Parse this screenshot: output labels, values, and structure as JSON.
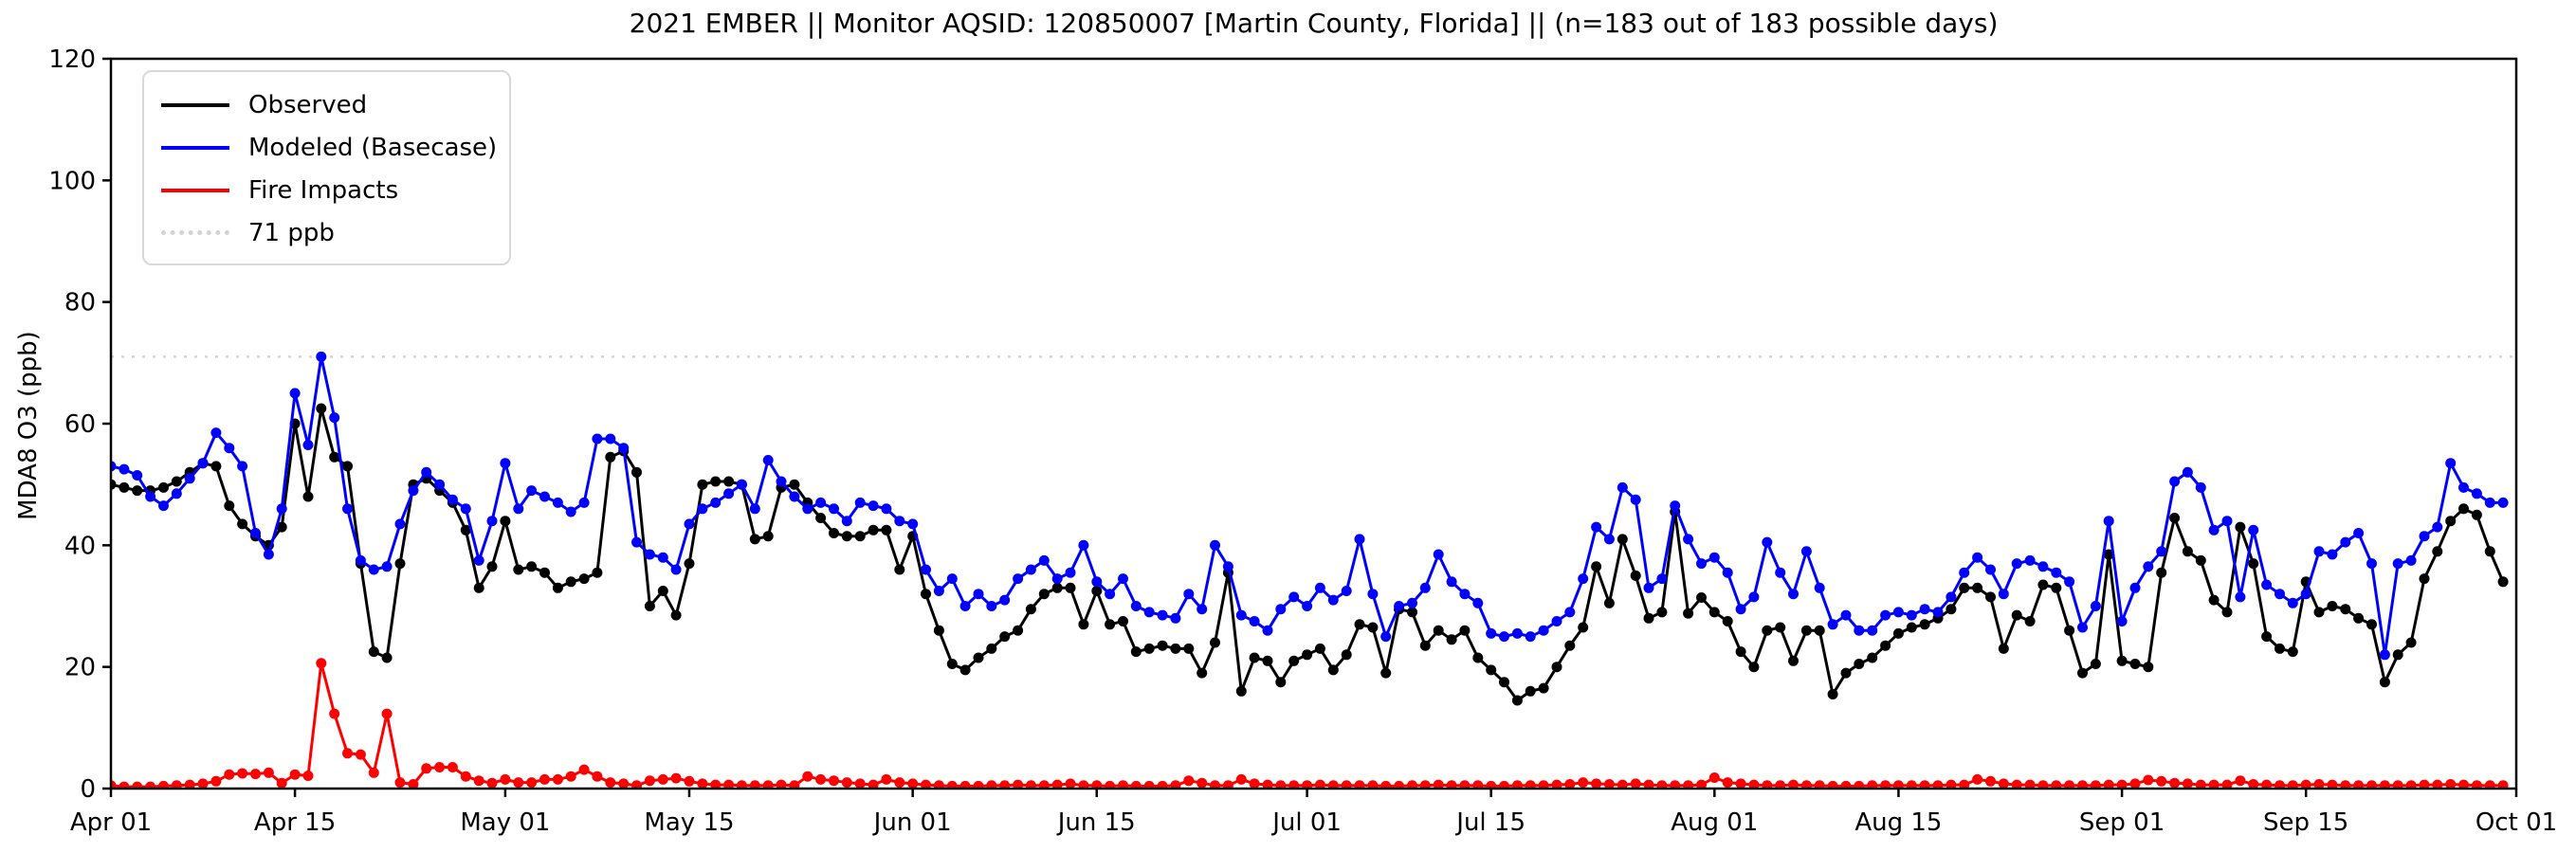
{
  "chart_data": {
    "type": "line",
    "title": "2021 EMBER || Monitor AQSID: 120850007 [Martin County, Florida] || (n=183 out of 183 possible days)",
    "ylabel": "MDA8 O3 (ppb)",
    "xlabel": "",
    "ylim": [
      0,
      120
    ],
    "y_ticks": [
      0,
      20,
      40,
      60,
      80,
      100,
      120
    ],
    "x_start_date": "2021-04-01",
    "x_end_date": "2021-10-01",
    "n_days": 183,
    "x_range_days": 183,
    "x_tick_days": [
      0,
      14,
      30,
      44,
      61,
      75,
      91,
      105,
      122,
      136,
      153,
      167,
      183
    ],
    "x_tick_labels": [
      "Apr 01",
      "Apr 15",
      "May 01",
      "May 15",
      "Jun 01",
      "Jun 15",
      "Jul 01",
      "Jul 15",
      "Aug 01",
      "Aug 15",
      "Sep 01",
      "Sep 15",
      "Oct 01"
    ],
    "grid": false,
    "legend_position": "upper left",
    "threshold": {
      "value": 71,
      "label": "71 ppb",
      "color": "#d3d3d3",
      "style": "dotted"
    },
    "series": [
      {
        "name": "Observed",
        "color": "#000000",
        "marker": "circle",
        "values": [
          50,
          49.5,
          49,
          49,
          49.5,
          50.5,
          52,
          53.5,
          53,
          46.5,
          43.5,
          41.5,
          40,
          43,
          60,
          48,
          62.5,
          54.5,
          53,
          37,
          22.5,
          21.5,
          37,
          50,
          51,
          49,
          47,
          42.5,
          33,
          36.5,
          44,
          36,
          36.5,
          35.5,
          33,
          34,
          34.5,
          35.5,
          54.5,
          55.5,
          52,
          30,
          32.5,
          28.5,
          37,
          50,
          50.5,
          50.5,
          50,
          41,
          41.5,
          49.5,
          50,
          47,
          44.5,
          42,
          41.5,
          41.5,
          42.5,
          42.5,
          36,
          41.5,
          32,
          26,
          20.5,
          19.5,
          21.5,
          23,
          25,
          26,
          29.5,
          32,
          33,
          33,
          27,
          32.5,
          27,
          27.5,
          22.5,
          23,
          23.5,
          23,
          23,
          19,
          24,
          35.5,
          16,
          21.5,
          21,
          17.5,
          21,
          22,
          23,
          19.5,
          22,
          27,
          26.5,
          19,
          29.5,
          29,
          23.5,
          26,
          24.5,
          26,
          21.5,
          19.5,
          17.5,
          14.5,
          16,
          16.5,
          20,
          23.5,
          26.5,
          36.5,
          30.5,
          41,
          35,
          28,
          29,
          45.5,
          28.8,
          31.4,
          29,
          27.5,
          22.5,
          20,
          26,
          26.5,
          21,
          26,
          26,
          15.5,
          19,
          20.5,
          21.5,
          23.5,
          25.5,
          26.5,
          27,
          28,
          29.5,
          33,
          33,
          31.5,
          23,
          28.5,
          27.5,
          33.5,
          33,
          26,
          19,
          20.5,
          38.5,
          21,
          20.5,
          20,
          35.5,
          44.5,
          39,
          37.5,
          31,
          29,
          43,
          37,
          25,
          23,
          22.5,
          34,
          29,
          30,
          29.5,
          28,
          27,
          17.5,
          22,
          24,
          34.5,
          39,
          44,
          46,
          45,
          39,
          34
        ]
      },
      {
        "name": "Modeled (Basecase)",
        "color": "#0000ff",
        "marker": "circle",
        "values": [
          53,
          52.5,
          51.5,
          48,
          46.5,
          48.5,
          51,
          53.5,
          58.5,
          56,
          53,
          42,
          38.5,
          46,
          65,
          56.5,
          71,
          61,
          46,
          37.5,
          36,
          36.5,
          43.5,
          49,
          52,
          50,
          47.5,
          46,
          37.5,
          44,
          53.5,
          46,
          49,
          48,
          47,
          45.5,
          47,
          57.5,
          57.5,
          56,
          40.5,
          38.5,
          38,
          36,
          43.5,
          46,
          47,
          48.5,
          50,
          46,
          54,
          50.5,
          48,
          46,
          47,
          46,
          44,
          47,
          46.5,
          46,
          44,
          43.5,
          36,
          32.5,
          34.5,
          30,
          32,
          30,
          31,
          34.5,
          36,
          37.5,
          34.5,
          35.5,
          40,
          34,
          32,
          34.5,
          30,
          29,
          28.5,
          28,
          32,
          29.5,
          40,
          36.5,
          28.5,
          27.5,
          26,
          29.5,
          31.5,
          30,
          33,
          31,
          32.5,
          41,
          32,
          25,
          30,
          30.5,
          33,
          38.5,
          34,
          32,
          30.5,
          25.5,
          25,
          25.5,
          25,
          26,
          27.5,
          29,
          34.5,
          43,
          41,
          49.5,
          47.5,
          33,
          34.5,
          46.5,
          41,
          37,
          38,
          35.5,
          29.5,
          31.5,
          40.5,
          35.5,
          32,
          39,
          33,
          27,
          28.5,
          26,
          26,
          28.5,
          29,
          28.5,
          29.5,
          29,
          31.5,
          35.5,
          38,
          36,
          32,
          37,
          37.5,
          36.5,
          35.5,
          34,
          26.5,
          30,
          44,
          27.5,
          33,
          36.5,
          39,
          50.5,
          52,
          49.5,
          42.5,
          44,
          31.5,
          42.5,
          33.5,
          32,
          30.5,
          32,
          39,
          38.5,
          40.5,
          42,
          37,
          22,
          37,
          37.5,
          41.5,
          43,
          53.5,
          49.5,
          48.5,
          47,
          47
        ]
      },
      {
        "name": "Fire Impacts",
        "color": "#ff0000",
        "marker": "circle",
        "values": [
          0.5,
          0.3,
          0.3,
          0.3,
          0.4,
          0.5,
          0.6,
          0.8,
          1.2,
          2.3,
          2.5,
          2.4,
          2.6,
          0.9,
          2.3,
          2.1,
          20.6,
          12.3,
          5.8,
          5.6,
          2.6,
          12.3,
          1.0,
          0.7,
          3.3,
          3.5,
          3.5,
          2.0,
          1.3,
          0.9,
          1.5,
          1.0,
          1.0,
          1.5,
          1.5,
          2.0,
          3.1,
          2.0,
          1.0,
          0.8,
          0.5,
          1.3,
          1.5,
          1.7,
          1.2,
          0.8,
          0.6,
          0.6,
          0.5,
          0.5,
          0.5,
          0.6,
          0.5,
          2.0,
          1.5,
          1.3,
          1.0,
          0.8,
          0.6,
          1.5,
          1.0,
          0.8,
          0.6,
          0.5,
          0.4,
          0.4,
          0.4,
          0.5,
          0.5,
          0.6,
          0.5,
          0.5,
          0.6,
          0.8,
          0.5,
          0.5,
          0.4,
          0.5,
          0.4,
          0.4,
          0.4,
          0.5,
          1.3,
          0.9,
          0.5,
          0.5,
          1.5,
          0.8,
          0.6,
          0.5,
          0.5,
          0.5,
          0.6,
          0.5,
          0.5,
          0.5,
          0.5,
          0.4,
          0.4,
          0.5,
          0.5,
          0.6,
          0.5,
          0.5,
          0.5,
          0.4,
          0.4,
          0.5,
          0.5,
          0.5,
          0.6,
          0.7,
          1.0,
          0.8,
          0.7,
          0.6,
          0.8,
          0.6,
          0.5,
          0.5,
          0.5,
          0.6,
          1.8,
          1.0,
          0.8,
          0.6,
          0.5,
          0.5,
          0.6,
          0.5,
          0.5,
          0.4,
          0.4,
          0.4,
          0.5,
          0.5,
          0.5,
          0.5,
          0.5,
          0.5,
          0.6,
          0.6,
          1.5,
          1.2,
          0.8,
          0.6,
          0.6,
          0.5,
          0.5,
          0.5,
          0.5,
          0.5,
          0.6,
          0.6,
          0.8,
          1.4,
          1.2,
          0.9,
          0.8,
          0.6,
          0.6,
          0.6,
          1.3,
          0.7,
          0.6,
          0.5,
          0.5,
          0.6,
          0.7,
          0.6,
          0.5,
          0.5,
          0.5,
          0.5,
          0.5,
          0.5,
          0.6,
          0.6,
          0.7,
          0.6,
          0.5,
          0.5,
          0.5
        ]
      }
    ],
    "legend_items": [
      {
        "label": "Observed",
        "color": "#000000",
        "style": "solid"
      },
      {
        "label": "Modeled (Basecase)",
        "color": "#0000ff",
        "style": "solid"
      },
      {
        "label": "Fire Impacts",
        "color": "#ff0000",
        "style": "solid"
      },
      {
        "label": "71 ppb",
        "color": "#d3d3d3",
        "style": "dotted"
      }
    ]
  },
  "layout_colors": {
    "background": "#ffffff",
    "axes": "#000000",
    "tick_label": "#000000",
    "legend_border": "#d9d9d9"
  }
}
